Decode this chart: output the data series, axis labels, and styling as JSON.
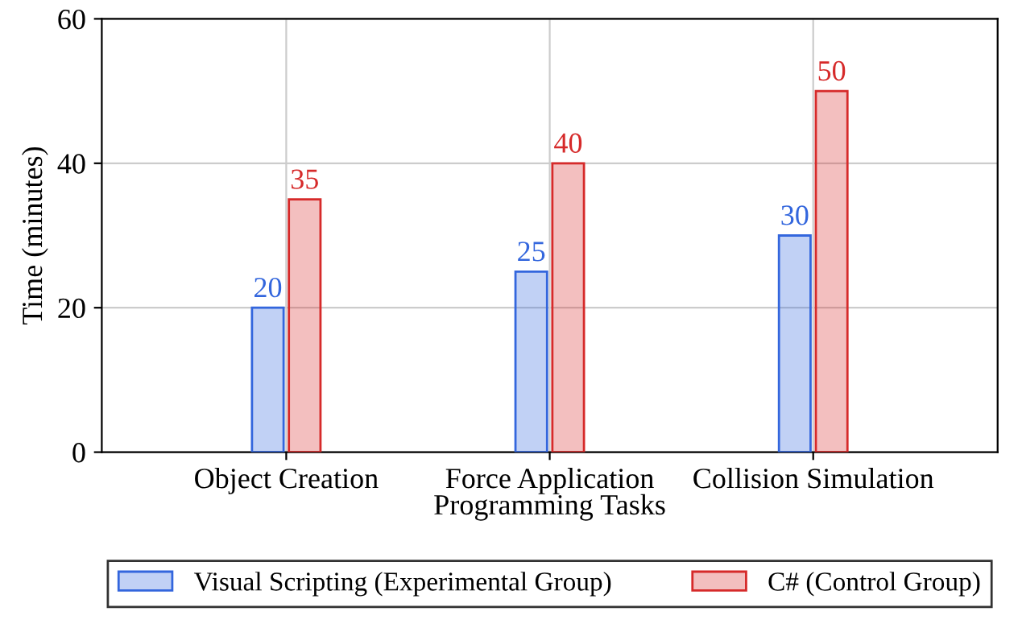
{
  "chart_data": {
    "type": "bar",
    "xlabel": "Programming Tasks",
    "ylabel": "Time (minutes)",
    "categories": [
      "Object Creation",
      "Force Application",
      "Collision Simulation"
    ],
    "series": [
      {
        "name": "Visual Scripting (Experimental Group)",
        "color": "#3366dd",
        "values": [
          20,
          25,
          30
        ]
      },
      {
        "name": "C# (Control Group)",
        "color": "#d62a2a",
        "values": [
          35,
          40,
          50
        ]
      }
    ],
    "ylim": [
      0,
      60
    ],
    "yticks": [
      0,
      20,
      40,
      60
    ],
    "grid": true,
    "legend": "bottom",
    "data_labels": true
  }
}
